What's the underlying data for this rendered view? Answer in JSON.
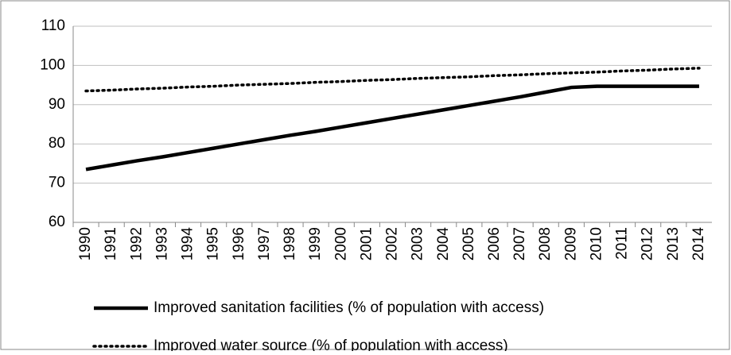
{
  "chart_data": {
    "type": "line",
    "categories": [
      "1990",
      "1991",
      "1992",
      "1993",
      "1994",
      "1995",
      "1996",
      "1997",
      "1998",
      "1999",
      "2000",
      "2001",
      "2002",
      "2003",
      "2004",
      "2005",
      "2006",
      "2007",
      "2008",
      "2009",
      "2010",
      "2011",
      "2012",
      "2013",
      "2014"
    ],
    "series": [
      {
        "name": "Improved sanitation facilities (% of population with access)",
        "color": "#000000",
        "line_style": "solid",
        "values": [
          73.5,
          74.6,
          75.7,
          76.7,
          77.8,
          78.9,
          80.0,
          81.1,
          82.2,
          83.2,
          84.3,
          85.4,
          86.5,
          87.6,
          88.7,
          89.8,
          90.9,
          92.0,
          93.2,
          94.4,
          94.7,
          94.7,
          94.7,
          94.7,
          94.7
        ]
      },
      {
        "name": "Improved water source (% of population with access)",
        "color": "#000000",
        "line_style": "dotted",
        "values": [
          93.5,
          93.7,
          94.0,
          94.2,
          94.5,
          94.7,
          95.0,
          95.2,
          95.4,
          95.7,
          95.9,
          96.2,
          96.4,
          96.7,
          96.9,
          97.1,
          97.4,
          97.6,
          97.9,
          98.1,
          98.3,
          98.6,
          98.8,
          99.1,
          99.3
        ]
      }
    ],
    "ylim": [
      60,
      110
    ],
    "yticks": [
      60,
      70,
      80,
      90,
      100,
      110
    ],
    "grid": true,
    "legend": "bottom"
  }
}
